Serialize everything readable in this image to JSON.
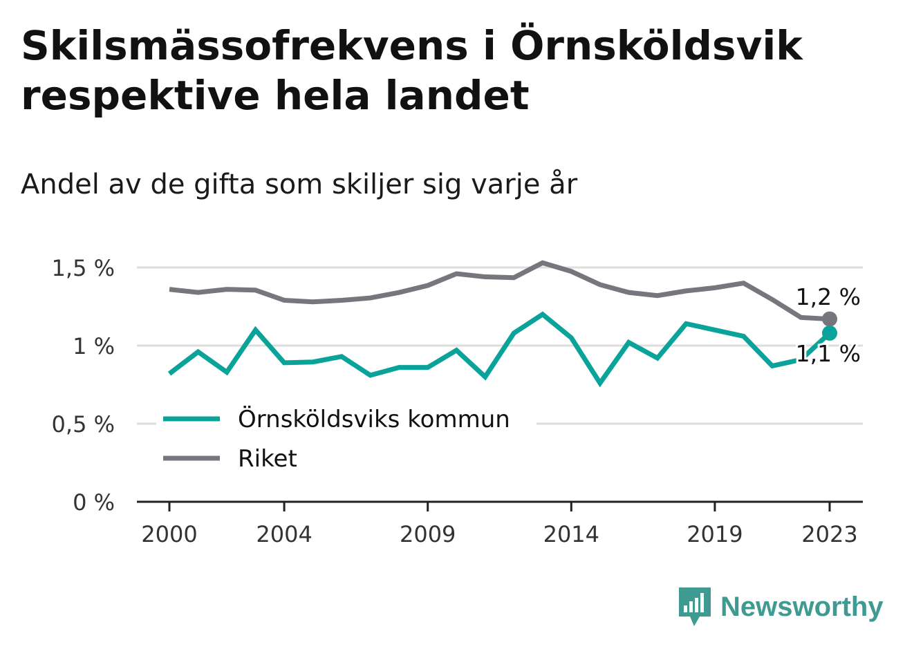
{
  "title": "Skilsmässofrekvens i Örnsköldsvik respektive hela landet",
  "subtitle": "Andel av de gifta som skiljer sig varje år",
  "brand": "Newsworthy",
  "colors": {
    "kommun": "#0aa39a",
    "riket": "#77767c",
    "grid": "#dedede",
    "axis": "#222222",
    "brand": "#3f9a92"
  },
  "chart_data": {
    "type": "line",
    "x": [
      2000,
      2001,
      2002,
      2003,
      2004,
      2005,
      2006,
      2007,
      2008,
      2009,
      2010,
      2011,
      2012,
      2013,
      2014,
      2015,
      2016,
      2017,
      2018,
      2019,
      2020,
      2021,
      2022,
      2023
    ],
    "x_ticks": [
      2000,
      2004,
      2009,
      2014,
      2019,
      2023
    ],
    "x_tick_labels": [
      "2000",
      "2004",
      "2009",
      "2014",
      "2019",
      "2023"
    ],
    "y_ticks": [
      0,
      0.5,
      1,
      1.5
    ],
    "y_tick_labels": [
      "0 %",
      "0,5 %",
      "1 %",
      "1,5 %"
    ],
    "ylim": [
      0,
      1.5
    ],
    "grid": true,
    "legend_position": "bottom-left",
    "series": [
      {
        "key": "kommun",
        "name": "Örnsköldsviks kommun",
        "values": [
          0.82,
          0.96,
          0.83,
          1.1,
          0.89,
          0.895,
          0.93,
          0.81,
          0.86,
          0.86,
          0.97,
          0.8,
          1.08,
          1.2,
          1.05,
          0.76,
          1.02,
          0.92,
          1.14,
          1.1,
          1.06,
          0.87,
          0.91,
          1.08
        ],
        "end_label": "1,1 %"
      },
      {
        "key": "riket",
        "name": "Riket",
        "values": [
          1.36,
          1.34,
          1.36,
          1.355,
          1.29,
          1.28,
          1.29,
          1.305,
          1.34,
          1.385,
          1.46,
          1.44,
          1.435,
          1.53,
          1.475,
          1.39,
          1.34,
          1.32,
          1.35,
          1.37,
          1.4,
          1.295,
          1.18,
          1.17
        ],
        "end_label": "1,2 %"
      }
    ]
  }
}
